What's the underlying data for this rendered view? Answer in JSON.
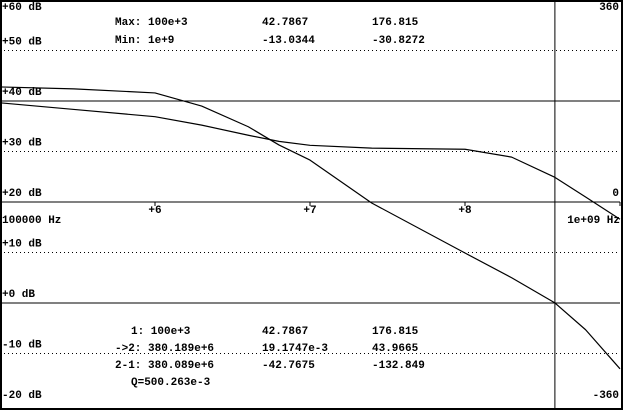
{
  "chart_data": {
    "type": "line",
    "log_x": true,
    "x": [
      100000,
      300000,
      1000000,
      2000000,
      4000000,
      6300000,
      10000000,
      25000000,
      100000000,
      200000000,
      380189000,
      600000000,
      1000000000
    ],
    "series": [
      {
        "color": "#000000",
        "values": [
          42.7867,
          42.4,
          41.6,
          39.0,
          34.9,
          31.3,
          28.3,
          19.8,
          9.9,
          5.0,
          0.0191747,
          -5.3,
          -13.0344
        ]
      },
      {
        "color": "#000000",
        "axis": "y2",
        "values": [
          176.815,
          165,
          152,
          137,
          119,
          108,
          101,
          96,
          94,
          80,
          43.9665,
          9,
          -30.8272
        ]
      }
    ],
    "xlim": [
      100000,
      1000000000
    ],
    "xticks": [
      {
        "value": 100000,
        "label": "100000 Hz"
      },
      {
        "value": 1000000,
        "label": "+6"
      },
      {
        "value": 10000000,
        "label": "+7"
      },
      {
        "value": 100000000,
        "label": "+8"
      },
      {
        "value": 1000000000,
        "label": "1e+09 Hz"
      }
    ],
    "ylim": [
      -20,
      60
    ],
    "yticks": [
      {
        "value": 60,
        "label": "+60 dB"
      },
      {
        "value": 50,
        "label": "+50 dB"
      },
      {
        "value": 40,
        "label": "+40 dB"
      },
      {
        "value": 30,
        "label": "+30 dB"
      },
      {
        "value": 20,
        "label": "+20 dB"
      },
      {
        "value": 10,
        "label": "+10 dB"
      },
      {
        "value": 0,
        "label": "+0 dB"
      },
      {
        "value": -10,
        "label": "-10 dB"
      },
      {
        "value": -20,
        "label": "-20 dB"
      }
    ],
    "y2lim": [
      -360,
      360
    ],
    "y2ticks": [
      360,
      0,
      -360
    ],
    "grid": true,
    "x_axis_at": 20,
    "reference_lines": [
      40,
      0
    ],
    "cursor_x": 380189000,
    "readouts": [
      [
        "Max: 100e+3",
        "42.7867",
        "176.815"
      ],
      [
        "Min: 1e+9",
        "-13.0344",
        "-30.8272"
      ],
      [
        "1: 100e+3",
        "42.7867",
        "176.815"
      ],
      [
        "->2: 380.189e+6",
        "19.1747e-3",
        "43.9665"
      ],
      [
        "2-1: 380.089e+6",
        "-42.7675",
        "-132.849"
      ],
      [
        "Q=500.263e-3"
      ]
    ]
  }
}
